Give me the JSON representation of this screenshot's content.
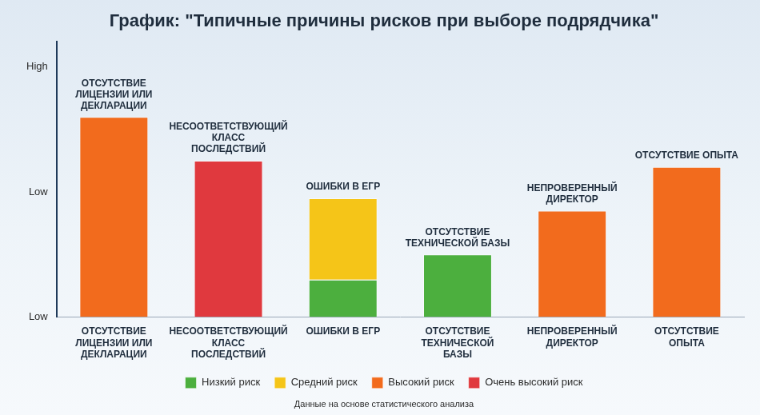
{
  "chart_data": {
    "type": "bar",
    "title": "График: \"Типичные причины рисков при выборе подрядчика\"",
    "subtitle": "Данные на основе статистического анализа",
    "categories": [
      "ОТСУТСТВИЕ ЛИЦЕНЗИИ ИЛИ ДЕКЛАРАЦИИ",
      "НЕСООТВЕТСТВУЮЩИЙ КЛАСС ПОСЛЕДСТВИЙ",
      "ОШИБКИ В ЕГР",
      "ОТСУТСТВИЕ ТЕХНИЧЕСКОЙ БАЗЫ",
      "НЕПРОВЕРЕННЫЙ ДИРЕКТОР",
      "ОТСУТСТВИЕ ОПЫТА"
    ],
    "series": [
      {
        "name": "Низкий риск",
        "color": "#4caf3e",
        "values": [
          null,
          null,
          0.3,
          0.5,
          null,
          null
        ]
      },
      {
        "name": "Средний риск",
        "color": "#f5c518",
        "values": [
          null,
          null,
          0.65,
          null,
          null,
          null
        ]
      },
      {
        "name": "Высокий риск",
        "color": "#f26b1d",
        "values": [
          1.6,
          null,
          null,
          null,
          0.85,
          1.2
        ]
      },
      {
        "name": "Очень высокий риск",
        "color": "#e0393e",
        "values": [
          null,
          1.25,
          null,
          null,
          null,
          null
        ]
      }
    ],
    "stacked": true,
    "ylim": [
      0,
      2.2
    ],
    "yticks": [
      {
        "value": 0,
        "label": "Low"
      },
      {
        "value": 1,
        "label": "Low"
      },
      {
        "value": 2,
        "label": "High"
      }
    ],
    "grid": false,
    "legend": "bottom"
  }
}
